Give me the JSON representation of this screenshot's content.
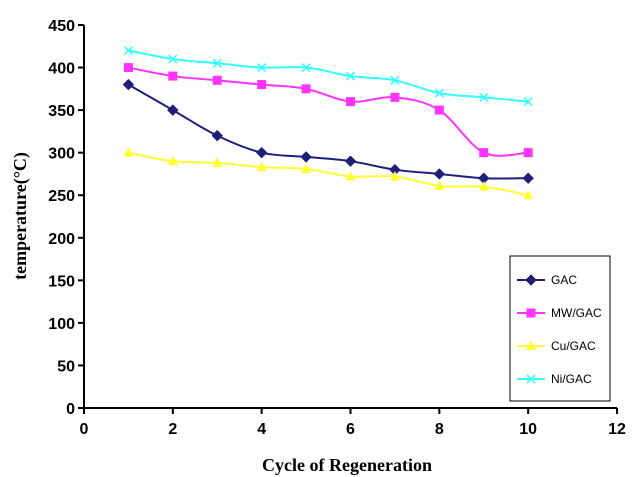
{
  "chart_data": {
    "type": "line",
    "xlabel": "Cycle of Regeneration",
    "ylabel": "temperature(°C)",
    "xlim": [
      0,
      12
    ],
    "ylim": [
      0,
      450
    ],
    "x_ticks": [
      "0",
      "2",
      "4",
      "6",
      "8",
      "10",
      "12"
    ],
    "y_ticks": [
      "0",
      "50",
      "100",
      "150",
      "200",
      "250",
      "300",
      "350",
      "400",
      "450"
    ],
    "grid": false,
    "legend_position": "right",
    "x": [
      1,
      2,
      3,
      4,
      5,
      6,
      7,
      8,
      9,
      10
    ],
    "series": [
      {
        "name": "GAC",
        "color": "#1f1f7a",
        "marker": "diamond",
        "values": [
          380,
          350,
          320,
          300,
          295,
          290,
          280,
          275,
          270,
          270
        ]
      },
      {
        "name": "MW/GAC",
        "color": "#ff33ff",
        "marker": "square",
        "values": [
          400,
          390,
          385,
          380,
          375,
          360,
          365,
          350,
          300,
          300
        ]
      },
      {
        "name": "Cu/GAC",
        "color": "#ffff33",
        "marker": "triangle",
        "values": [
          300,
          290,
          288,
          283,
          281,
          272,
          272,
          261,
          260,
          250
        ]
      },
      {
        "name": "Ni/GAC",
        "color": "#33ffff",
        "marker": "x",
        "values": [
          420,
          410,
          405,
          400,
          400,
          390,
          385,
          370,
          365,
          360
        ]
      }
    ]
  }
}
